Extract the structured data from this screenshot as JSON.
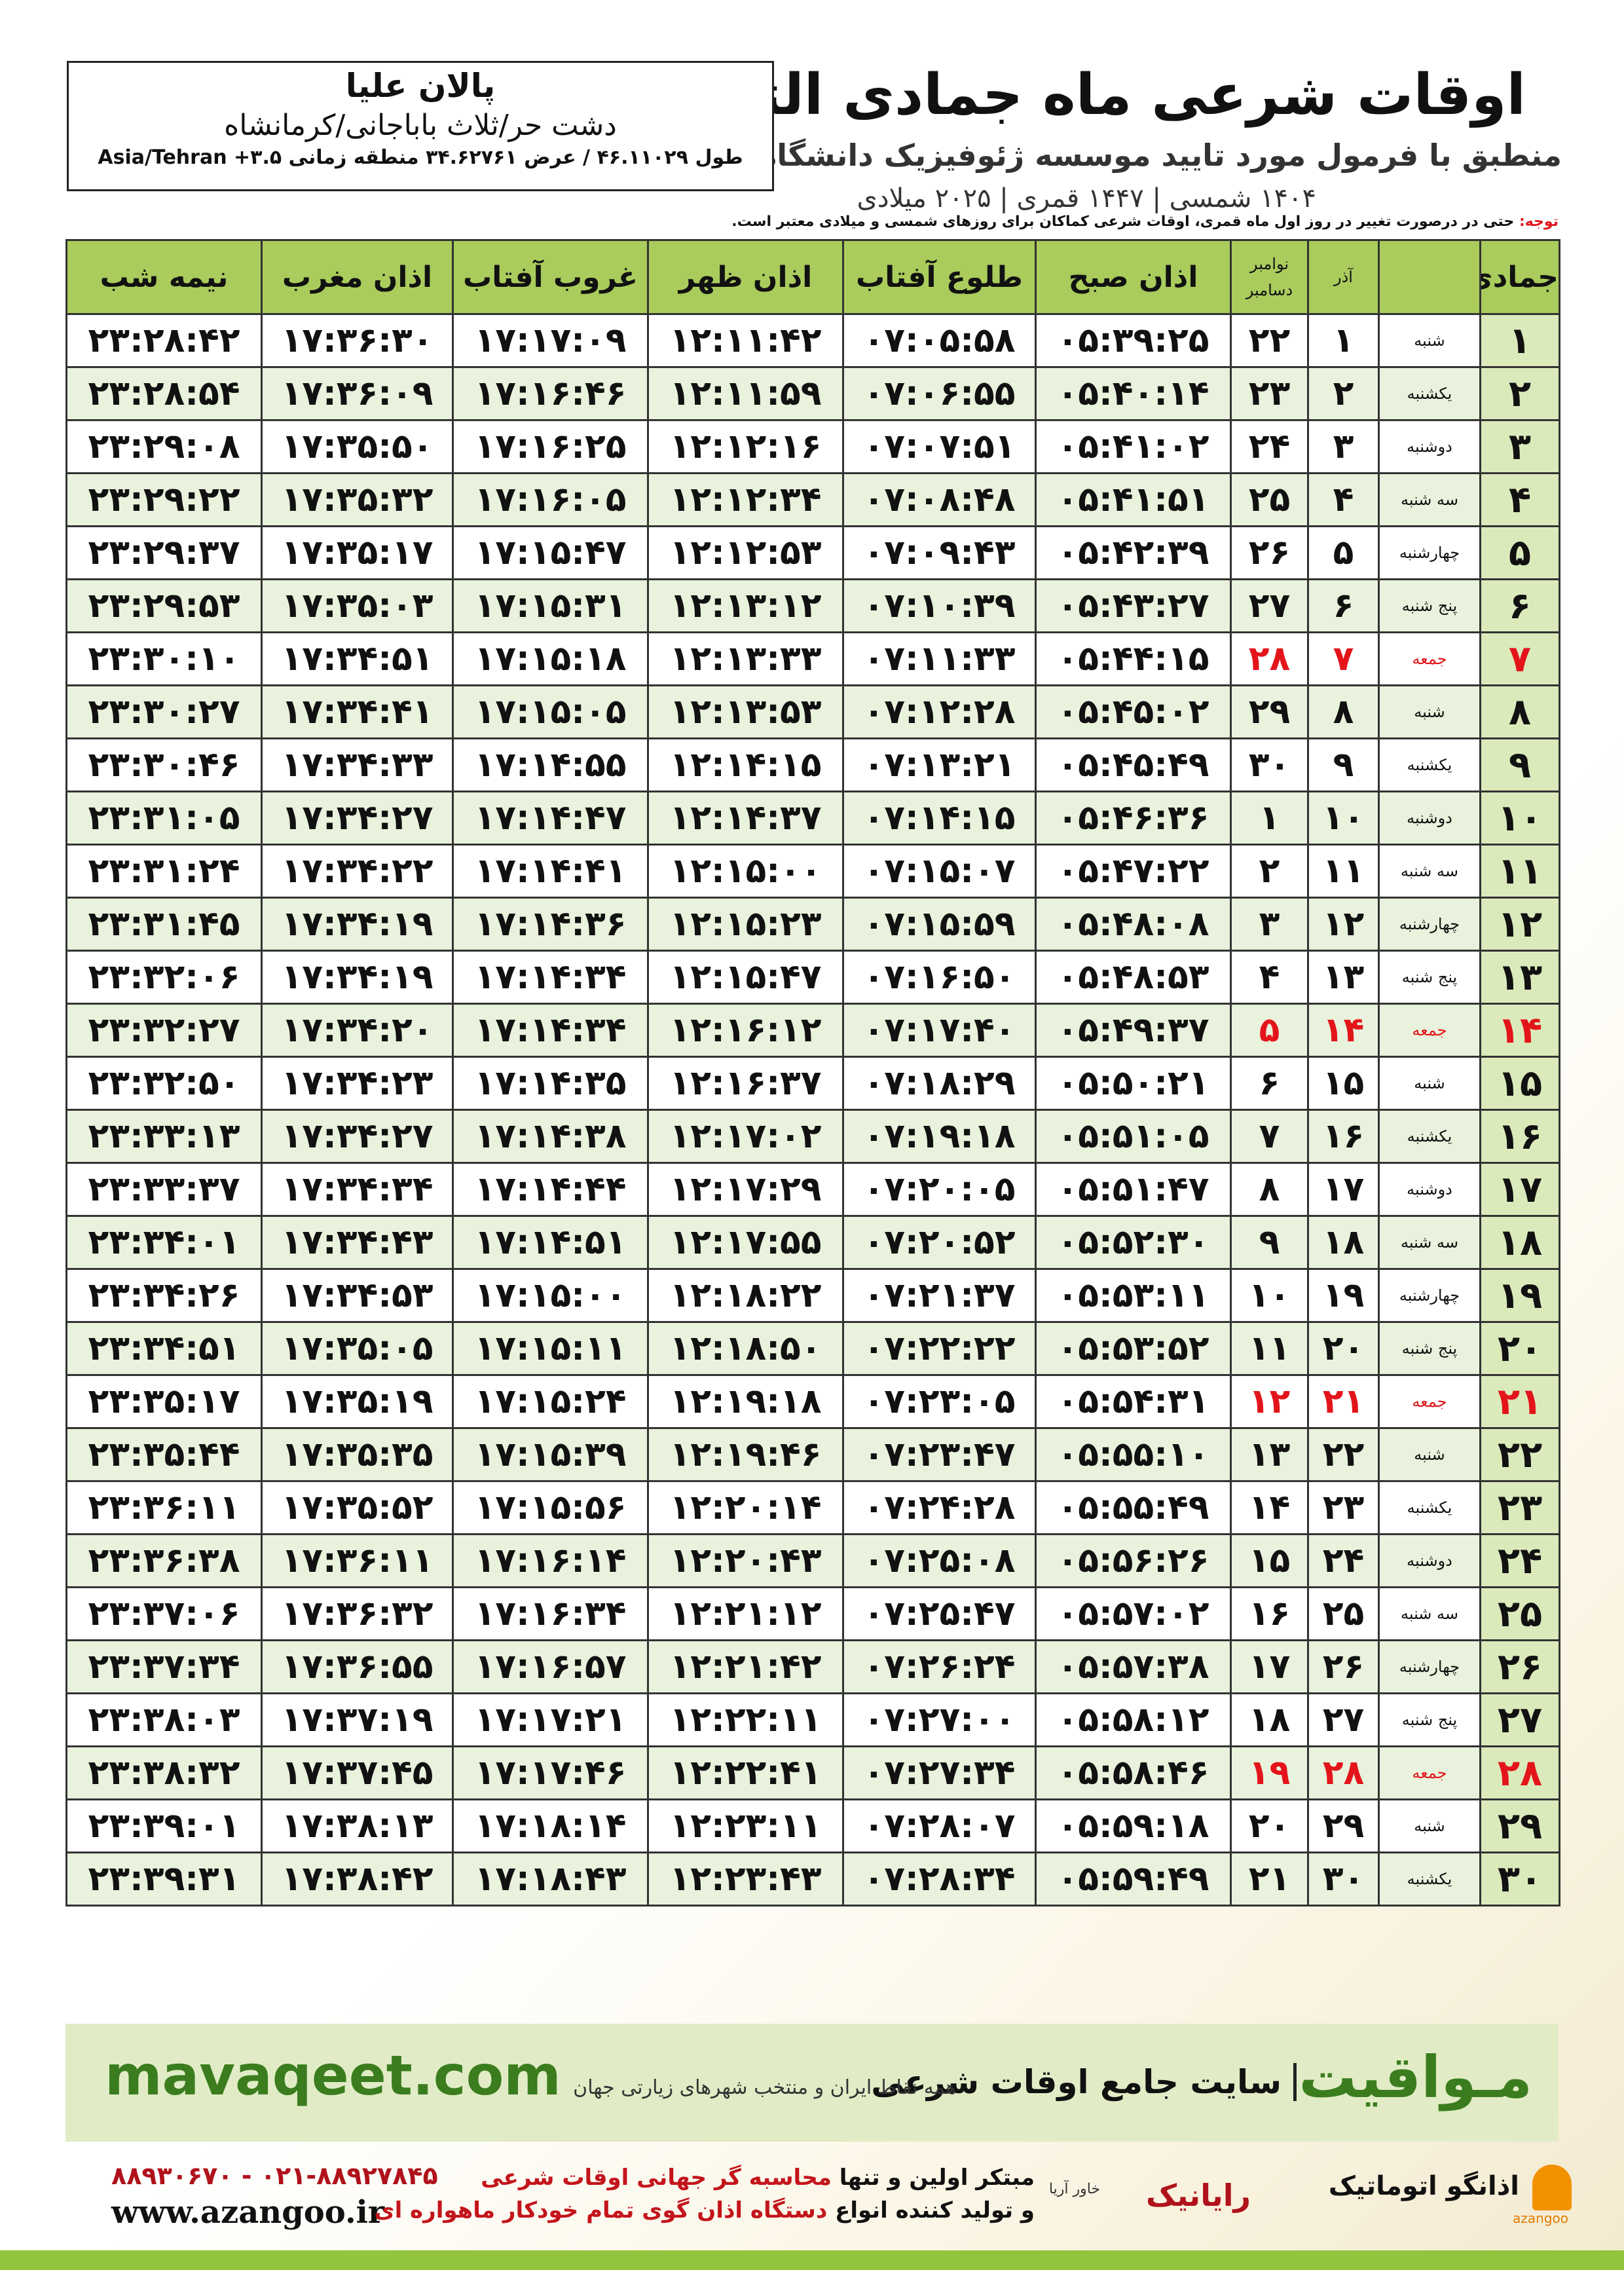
{
  "header": {
    "title": "اوقات شرعی ماه جمادی الثانی",
    "subtitle": "منطبق با فرمول مورد تایید موسسه ژئوفیزیک دانشگاه تهران",
    "dates": "۱۴۰۴ شمسی | ۱۴۴۷ قمری | ۲۰۲۵ میلادی"
  },
  "location": {
    "name": "پالان علیا",
    "region": "دشت حر/ثلاث باباجانی/کرمانشاه",
    "coordinates": "طول ۴۶.۱۱۰۲۹ / عرض ۳۴.۶۲۷۶۱ منطقه زمانی ۳.۵+ Asia/Tehran"
  },
  "note": {
    "label": "توجه:",
    "text": "حتی در درصورت تغییر در روز اول ماه قمری، اوقات شرعی کماکان برای روزهای شمسی و میلادی معتبر است."
  },
  "table": {
    "columns": [
      "جمادی الثانی",
      "",
      "آذر",
      [
        "نوامبر",
        "دسامبر"
      ],
      "اذان صبح",
      "طلوع آفتاب",
      "اذان ظهر",
      "غروب آفتاب",
      "اذان مغرب",
      "نیمه شب"
    ],
    "highlight": {
      "color": "#e3151b",
      "rows": [
        6,
        13,
        20,
        27
      ]
    },
    "rows": [
      [
        "۱",
        "شنبه",
        "۱",
        "۲۲",
        "۰۵:۳۹:۲۵",
        "۰۷:۰۵:۵۸",
        "۱۲:۱۱:۴۲",
        "۱۷:۱۷:۰۹",
        "۱۷:۳۶:۳۰",
        "۲۳:۲۸:۴۲"
      ],
      [
        "۲",
        "یکشنبه",
        "۲",
        "۲۳",
        "۰۵:۴۰:۱۴",
        "۰۷:۰۶:۵۵",
        "۱۲:۱۱:۵۹",
        "۱۷:۱۶:۴۶",
        "۱۷:۳۶:۰۹",
        "۲۳:۲۸:۵۴"
      ],
      [
        "۳",
        "دوشنبه",
        "۳",
        "۲۴",
        "۰۵:۴۱:۰۲",
        "۰۷:۰۷:۵۱",
        "۱۲:۱۲:۱۶",
        "۱۷:۱۶:۲۵",
        "۱۷:۳۵:۵۰",
        "۲۳:۲۹:۰۸"
      ],
      [
        "۴",
        "سه شنبه",
        "۴",
        "۲۵",
        "۰۵:۴۱:۵۱",
        "۰۷:۰۸:۴۸",
        "۱۲:۱۲:۳۴",
        "۱۷:۱۶:۰۵",
        "۱۷:۳۵:۳۲",
        "۲۳:۲۹:۲۲"
      ],
      [
        "۵",
        "چهارشنبه",
        "۵",
        "۲۶",
        "۰۵:۴۲:۳۹",
        "۰۷:۰۹:۴۳",
        "۱۲:۱۲:۵۳",
        "۱۷:۱۵:۴۷",
        "۱۷:۳۵:۱۷",
        "۲۳:۲۹:۳۷"
      ],
      [
        "۶",
        "پنج شنبه",
        "۶",
        "۲۷",
        "۰۵:۴۳:۲۷",
        "۰۷:۱۰:۳۹",
        "۱۲:۱۳:۱۲",
        "۱۷:۱۵:۳۱",
        "۱۷:۳۵:۰۳",
        "۲۳:۲۹:۵۳"
      ],
      [
        "۷",
        "جمعه",
        "۷",
        "۲۸",
        "۰۵:۴۴:۱۵",
        "۰۷:۱۱:۳۳",
        "۱۲:۱۳:۳۳",
        "۱۷:۱۵:۱۸",
        "۱۷:۳۴:۵۱",
        "۲۳:۳۰:۱۰"
      ],
      [
        "۸",
        "شنبه",
        "۸",
        "۲۹",
        "۰۵:۴۵:۰۲",
        "۰۷:۱۲:۲۸",
        "۱۲:۱۳:۵۳",
        "۱۷:۱۵:۰۵",
        "۱۷:۳۴:۴۱",
        "۲۳:۳۰:۲۷"
      ],
      [
        "۹",
        "یکشنبه",
        "۹",
        "۳۰",
        "۰۵:۴۵:۴۹",
        "۰۷:۱۳:۲۱",
        "۱۲:۱۴:۱۵",
        "۱۷:۱۴:۵۵",
        "۱۷:۳۴:۳۳",
        "۲۳:۳۰:۴۶"
      ],
      [
        "۱۰",
        "دوشنبه",
        "۱۰",
        "۱",
        "۰۵:۴۶:۳۶",
        "۰۷:۱۴:۱۵",
        "۱۲:۱۴:۳۷",
        "۱۷:۱۴:۴۷",
        "۱۷:۳۴:۲۷",
        "۲۳:۳۱:۰۵"
      ],
      [
        "۱۱",
        "سه شنبه",
        "۱۱",
        "۲",
        "۰۵:۴۷:۲۲",
        "۰۷:۱۵:۰۷",
        "۱۲:۱۵:۰۰",
        "۱۷:۱۴:۴۱",
        "۱۷:۳۴:۲۲",
        "۲۳:۳۱:۲۴"
      ],
      [
        "۱۲",
        "چهارشنبه",
        "۱۲",
        "۳",
        "۰۵:۴۸:۰۸",
        "۰۷:۱۵:۵۹",
        "۱۲:۱۵:۲۳",
        "۱۷:۱۴:۳۶",
        "۱۷:۳۴:۱۹",
        "۲۳:۳۱:۴۵"
      ],
      [
        "۱۳",
        "پنج شنبه",
        "۱۳",
        "۴",
        "۰۵:۴۸:۵۳",
        "۰۷:۱۶:۵۰",
        "۱۲:۱۵:۴۷",
        "۱۷:۱۴:۳۴",
        "۱۷:۳۴:۱۹",
        "۲۳:۳۲:۰۶"
      ],
      [
        "۱۴",
        "جمعه",
        "۱۴",
        "۵",
        "۰۵:۴۹:۳۷",
        "۰۷:۱۷:۴۰",
        "۱۲:۱۶:۱۲",
        "۱۷:۱۴:۳۴",
        "۱۷:۳۴:۲۰",
        "۲۳:۳۲:۲۷"
      ],
      [
        "۱۵",
        "شنبه",
        "۱۵",
        "۶",
        "۰۵:۵۰:۲۱",
        "۰۷:۱۸:۲۹",
        "۱۲:۱۶:۳۷",
        "۱۷:۱۴:۳۵",
        "۱۷:۳۴:۲۳",
        "۲۳:۳۲:۵۰"
      ],
      [
        "۱۶",
        "یکشنبه",
        "۱۶",
        "۷",
        "۰۵:۵۱:۰۵",
        "۰۷:۱۹:۱۸",
        "۱۲:۱۷:۰۲",
        "۱۷:۱۴:۳۸",
        "۱۷:۳۴:۲۷",
        "۲۳:۳۳:۱۳"
      ],
      [
        "۱۷",
        "دوشنبه",
        "۱۷",
        "۸",
        "۰۵:۵۱:۴۷",
        "۰۷:۲۰:۰۵",
        "۱۲:۱۷:۲۹",
        "۱۷:۱۴:۴۴",
        "۱۷:۳۴:۳۴",
        "۲۳:۳۳:۳۷"
      ],
      [
        "۱۸",
        "سه شنبه",
        "۱۸",
        "۹",
        "۰۵:۵۲:۳۰",
        "۰۷:۲۰:۵۲",
        "۱۲:۱۷:۵۵",
        "۱۷:۱۴:۵۱",
        "۱۷:۳۴:۴۳",
        "۲۳:۳۴:۰۱"
      ],
      [
        "۱۹",
        "چهارشنبه",
        "۱۹",
        "۱۰",
        "۰۵:۵۳:۱۱",
        "۰۷:۲۱:۳۷",
        "۱۲:۱۸:۲۲",
        "۱۷:۱۵:۰۰",
        "۱۷:۳۴:۵۳",
        "۲۳:۳۴:۲۶"
      ],
      [
        "۲۰",
        "پنج شنبه",
        "۲۰",
        "۱۱",
        "۰۵:۵۳:۵۲",
        "۰۷:۲۲:۲۲",
        "۱۲:۱۸:۵۰",
        "۱۷:۱۵:۱۱",
        "۱۷:۳۵:۰۵",
        "۲۳:۳۴:۵۱"
      ],
      [
        "۲۱",
        "جمعه",
        "۲۱",
        "۱۲",
        "۰۵:۵۴:۳۱",
        "۰۷:۲۳:۰۵",
        "۱۲:۱۹:۱۸",
        "۱۷:۱۵:۲۴",
        "۱۷:۳۵:۱۹",
        "۲۳:۳۵:۱۷"
      ],
      [
        "۲۲",
        "شنبه",
        "۲۲",
        "۱۳",
        "۰۵:۵۵:۱۰",
        "۰۷:۲۳:۴۷",
        "۱۲:۱۹:۴۶",
        "۱۷:۱۵:۳۹",
        "۱۷:۳۵:۳۵",
        "۲۳:۳۵:۴۴"
      ],
      [
        "۲۳",
        "یکشنبه",
        "۲۳",
        "۱۴",
        "۰۵:۵۵:۴۹",
        "۰۷:۲۴:۲۸",
        "۱۲:۲۰:۱۴",
        "۱۷:۱۵:۵۶",
        "۱۷:۳۵:۵۲",
        "۲۳:۳۶:۱۱"
      ],
      [
        "۲۴",
        "دوشنبه",
        "۲۴",
        "۱۵",
        "۰۵:۵۶:۲۶",
        "۰۷:۲۵:۰۸",
        "۱۲:۲۰:۴۳",
        "۱۷:۱۶:۱۴",
        "۱۷:۳۶:۱۱",
        "۲۳:۳۶:۳۸"
      ],
      [
        "۲۵",
        "سه شنبه",
        "۲۵",
        "۱۶",
        "۰۵:۵۷:۰۲",
        "۰۷:۲۵:۴۷",
        "۱۲:۲۱:۱۲",
        "۱۷:۱۶:۳۴",
        "۱۷:۳۶:۳۲",
        "۲۳:۳۷:۰۶"
      ],
      [
        "۲۶",
        "چهارشنبه",
        "۲۶",
        "۱۷",
        "۰۵:۵۷:۳۸",
        "۰۷:۲۶:۲۴",
        "۱۲:۲۱:۴۲",
        "۱۷:۱۶:۵۷",
        "۱۷:۳۶:۵۵",
        "۲۳:۳۷:۳۴"
      ],
      [
        "۲۷",
        "پنج شنبه",
        "۲۷",
        "۱۸",
        "۰۵:۵۸:۱۲",
        "۰۷:۲۷:۰۰",
        "۱۲:۲۲:۱۱",
        "۱۷:۱۷:۲۱",
        "۱۷:۳۷:۱۹",
        "۲۳:۳۸:۰۳"
      ],
      [
        "۲۸",
        "جمعه",
        "۲۸",
        "۱۹",
        "۰۵:۵۸:۴۶",
        "۰۷:۲۷:۳۴",
        "۱۲:۲۲:۴۱",
        "۱۷:۱۷:۴۶",
        "۱۷:۳۷:۴۵",
        "۲۳:۳۸:۳۲"
      ],
      [
        "۲۹",
        "شنبه",
        "۲۹",
        "۲۰",
        "۰۵:۵۹:۱۸",
        "۰۷:۲۸:۰۷",
        "۱۲:۲۳:۱۱",
        "۱۷:۱۸:۱۴",
        "۱۷:۳۸:۱۳",
        "۲۳:۳۹:۰۱"
      ],
      [
        "۳۰",
        "یکشنبه",
        "۳۰",
        "۲۱",
        "۰۵:۵۹:۴۹",
        "۰۷:۲۸:۳۴",
        "۱۲:۲۳:۴۳",
        "۱۷:۱۸:۴۳",
        "۱۷:۳۸:۴۲",
        "۲۳:۳۹:۳۱"
      ]
    ]
  },
  "footer": {
    "brand": "مـواقیت",
    "tagline": "سایت جامع اوقات شرعی",
    "tagline_sub": "همه نقاط ایران و منتخب شهرهای زیارتی جهان",
    "site": "mavaqeet.com",
    "phones": "۰۲۱-۸۸۹۲۷۸۴۵ - ۸۸۹۳۰۶۷۰",
    "url": "www.azangoo.ir",
    "line1_a": "مبتکر اولین و تنها",
    "line1_b": "محاسبه گر جهانی اوقات شرعی",
    "line2_a": "و تولید کننده انواع",
    "line2_b": "دستگاه اذان گوی تمام خودکار ماهواره ای",
    "logo1": "رایانیک",
    "logo1_sub": "خاور آریا",
    "logo2": "اذانگو اتوماتیک",
    "logo2_sub": "azangoo"
  }
}
